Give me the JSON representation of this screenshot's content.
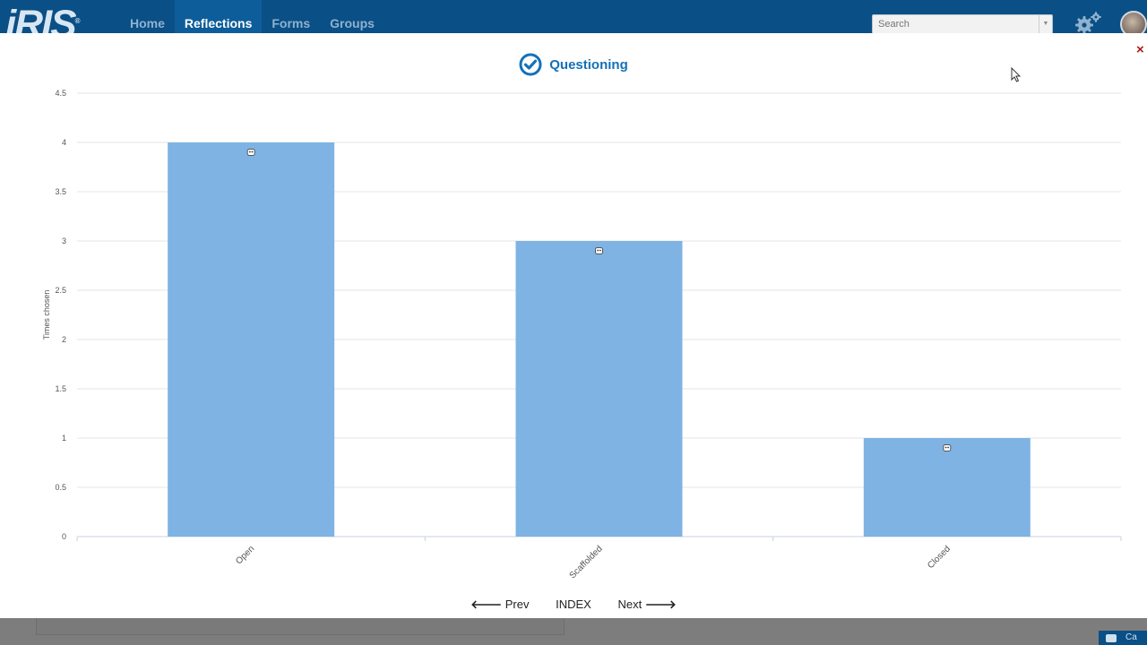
{
  "app": {
    "logo": "iRIS",
    "logo_mark": "®"
  },
  "nav": {
    "items": [
      {
        "label": "Home",
        "active": false
      },
      {
        "label": "Reflections",
        "active": true
      },
      {
        "label": "Forms",
        "active": false
      },
      {
        "label": "Groups",
        "active": false
      }
    ]
  },
  "search": {
    "placeholder": "Search",
    "dropdown_icon": "caret-down-icon"
  },
  "header_icons": {
    "settings": "gear-icon",
    "user": "avatar"
  },
  "modal": {
    "close_label": "×",
    "title": "Questioning",
    "title_icon": "check-circle-icon"
  },
  "chart_data": {
    "type": "bar",
    "categories": [
      "Open",
      "Scaffolded",
      "Closed"
    ],
    "values": [
      4,
      3,
      1
    ],
    "title": "Questioning",
    "xlabel": "",
    "ylabel": "Times chosen",
    "ylim": [
      0,
      4.5
    ],
    "yticks": [
      "0",
      "0.5",
      "1",
      "1.5",
      "2",
      "2.5",
      "3",
      "3.5",
      "4",
      "4.5"
    ],
    "grid": true,
    "bar_color": "#7fb3e3",
    "bar_icons": [
      "face-icon-open",
      "face-icon-scaffolded",
      "megaphone-icon"
    ]
  },
  "pager": {
    "prev_label": "Prev",
    "index_label": "INDEX",
    "next_label": "Next"
  },
  "colors": {
    "nav_bg": "#0a4f86",
    "accent": "#1371b8",
    "close": "#b01818"
  },
  "footer": {
    "chat_label": "Ca"
  }
}
